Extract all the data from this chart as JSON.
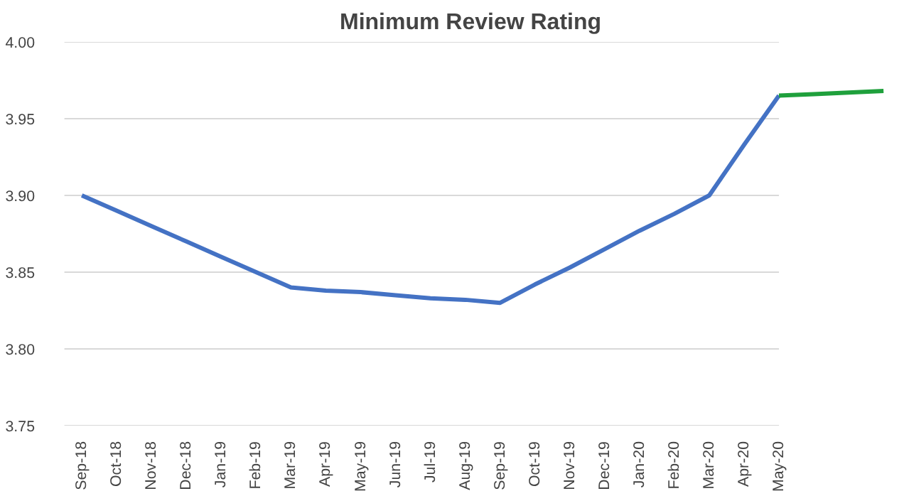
{
  "chart_data": {
    "type": "line",
    "title": "Minimum Review Rating",
    "categories": [
      "Sep-18",
      "Oct-18",
      "Nov-18",
      "Dec-18",
      "Jan-19",
      "Feb-19",
      "Mar-19",
      "Apr-19",
      "May-19",
      "Jun-19",
      "Jul-19",
      "Aug-19",
      "Sep-19",
      "Oct-19",
      "Nov-19",
      "Dec-19",
      "Jan-20",
      "Feb-20",
      "Mar-20",
      "Apr-20",
      "May-20",
      null,
      null,
      null
    ],
    "series": [
      {
        "color": "#4472c4",
        "values": [
          3.9,
          3.89,
          3.88,
          3.87,
          3.86,
          3.85,
          3.84,
          3.838,
          3.837,
          3.835,
          3.833,
          3.832,
          3.83,
          3.842,
          3.853,
          3.865,
          3.877,
          3.888,
          3.9,
          3.933,
          3.965,
          null,
          null,
          null
        ]
      },
      {
        "color": "#1fa03c",
        "values": [
          null,
          null,
          null,
          null,
          null,
          null,
          null,
          null,
          null,
          null,
          null,
          null,
          null,
          null,
          null,
          null,
          null,
          null,
          null,
          null,
          3.965,
          3.966,
          3.967,
          3.968
        ]
      }
    ],
    "ylim": [
      3.75,
      4.0
    ],
    "yticks": [
      3.75,
      {
        "value": 3.8,
        "label": "3.80"
      },
      3.85,
      {
        "value": 3.9,
        "label": "3.90"
      },
      3.95,
      {
        "value": 4.0,
        "label": "4.00"
      }
    ],
    "grid": "y",
    "marker": "none"
  }
}
